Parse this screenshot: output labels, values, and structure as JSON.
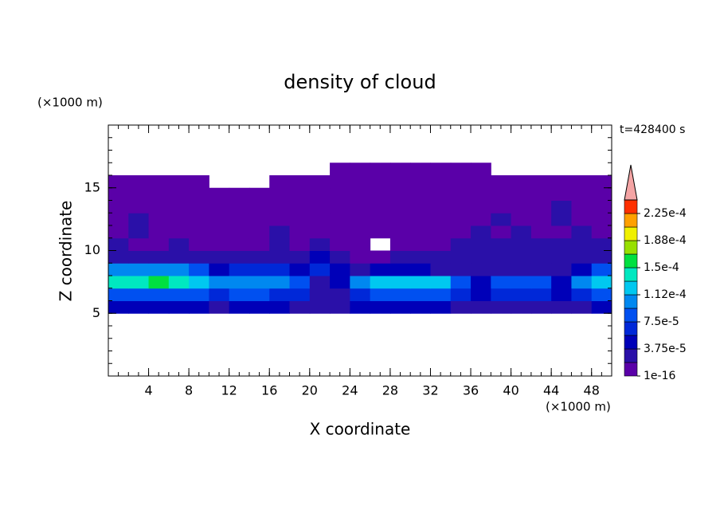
{
  "chart_data": {
    "type": "contour",
    "title": "density of cloud",
    "xlabel": "X coordinate",
    "ylabel": "Z coordinate",
    "xunit": "(×1000 m)",
    "yunit": "(×1000 m)",
    "annotation": "t=428400 s",
    "xlim": [
      0,
      50
    ],
    "ylim": [
      0,
      20
    ],
    "xticks": [
      4,
      8,
      12,
      16,
      20,
      24,
      28,
      32,
      36,
      40,
      44,
      48
    ],
    "yticks": [
      5,
      10,
      15
    ],
    "xminor": 1,
    "yminor": 1,
    "x": [
      1,
      3,
      5,
      7,
      9,
      11,
      13,
      15,
      17,
      19,
      21,
      23,
      25,
      27,
      29,
      31,
      33,
      35,
      37,
      39,
      41,
      43,
      45,
      47,
      49
    ],
    "y": [
      4.5,
      5.5,
      6.5,
      7.5,
      8.5,
      9.5,
      10.5,
      11.5,
      12.5,
      13.5,
      14.5,
      15.5,
      16.5,
      17.5
    ],
    "z": [
      [
        null,
        null,
        null,
        null,
        null,
        null,
        null,
        null,
        null,
        null,
        null,
        null,
        null,
        null,
        null,
        null,
        null,
        null,
        null,
        null,
        null,
        null,
        null,
        null,
        null
      ],
      [
        4e-05,
        4e-05,
        4e-05,
        4e-05,
        4e-05,
        3e-05,
        4e-05,
        4e-05,
        4e-05,
        3e-05,
        2e-05,
        2e-05,
        4e-05,
        4e-05,
        4e-05,
        4e-05,
        4e-05,
        3e-05,
        2e-05,
        3e-05,
        3e-05,
        3e-05,
        2e-05,
        3e-05,
        4e-05
      ],
      [
        8e-05,
        8e-05,
        8.5e-05,
        8e-05,
        8e-05,
        7e-05,
        8e-05,
        8e-05,
        7e-05,
        6e-05,
        3e-05,
        3e-05,
        7e-05,
        8e-05,
        8.5e-05,
        8.5e-05,
        8e-05,
        6e-05,
        4e-05,
        6e-05,
        6e-05,
        6e-05,
        4e-05,
        6e-05,
        8e-05
      ],
      [
        0.00014,
        0.000145,
        0.00015,
        0.00014,
        0.00013,
        0.0001,
        0.000105,
        0.00011,
        0.0001,
        8e-05,
        3e-05,
        4e-05,
        0.0001,
        0.00012,
        0.00013,
        0.00013,
        0.00012,
        9e-05,
        5e-05,
        8e-05,
        9e-05,
        8e-05,
        4e-05,
        0.0001,
        0.00013
      ],
      [
        0.0001,
        0.00011,
        0.00011,
        0.0001,
        8e-05,
        5e-05,
        6e-05,
        7e-05,
        6e-05,
        5e-05,
        6e-05,
        4e-05,
        3e-05,
        4e-05,
        4e-05,
        4e-05,
        3e-05,
        3e-05,
        3e-05,
        2e-05,
        2e-05,
        2e-05,
        2e-05,
        4e-05,
        8e-05
      ],
      [
        3e-05,
        3e-05,
        3e-05,
        2.5e-05,
        2.5e-05,
        2e-05,
        2e-05,
        3e-05,
        2e-05,
        2e-05,
        4e-05,
        2e-05,
        1e-05,
        1.5e-05,
        2e-05,
        2e-05,
        2e-05,
        2e-05,
        2.5e-05,
        2e-05,
        2e-05,
        3e-05,
        2e-05,
        2e-05,
        2.5e-05
      ],
      [
        2e-05,
        1.5e-05,
        1.5e-05,
        2e-05,
        1.5e-05,
        1e-05,
        1e-05,
        1.5e-05,
        2e-05,
        1e-05,
        2e-05,
        1e-05,
        5e-06,
        null,
        1e-05,
        1e-05,
        1.5e-05,
        2e-05,
        2e-05,
        2e-05,
        2e-05,
        2.5e-05,
        2e-05,
        2e-05,
        2e-05
      ],
      [
        1e-05,
        2e-05,
        1e-05,
        1e-05,
        8e-06,
        8e-06,
        8e-06,
        1e-05,
        2e-05,
        1e-05,
        1e-05,
        5e-06,
        5e-06,
        1e-05,
        5e-06,
        8e-06,
        8e-06,
        1e-05,
        2e-05,
        1e-05,
        2e-05,
        1e-05,
        1e-05,
        2e-05,
        1e-05
      ],
      [
        8e-06,
        2e-05,
        5e-06,
        8e-06,
        5e-06,
        5e-06,
        5e-06,
        8e-06,
        5e-06,
        5e-06,
        8e-06,
        5e-06,
        5e-06,
        5e-06,
        5e-06,
        5e-06,
        5e-06,
        8e-06,
        1e-05,
        2e-05,
        8e-06,
        1e-05,
        2e-05,
        8e-06,
        8e-06
      ],
      [
        5e-06,
        5e-06,
        5e-06,
        5e-06,
        5e-06,
        5e-06,
        5e-06,
        5e-06,
        5e-06,
        5e-06,
        5e-06,
        5e-06,
        5e-06,
        5e-06,
        5e-06,
        5e-06,
        5e-06,
        5e-06,
        5e-06,
        5e-06,
        5e-06,
        5e-06,
        2e-05,
        5e-06,
        5e-06
      ],
      [
        3e-06,
        3e-06,
        3e-06,
        3e-06,
        3e-06,
        3e-06,
        3e-06,
        3e-06,
        3e-06,
        3e-06,
        3e-06,
        3e-06,
        3e-06,
        3e-06,
        3e-06,
        3e-06,
        3e-06,
        3e-06,
        3e-06,
        3e-06,
        3e-06,
        3e-06,
        3e-06,
        3e-06,
        3e-06
      ],
      [
        3e-06,
        3e-06,
        3e-06,
        3e-06,
        3e-06,
        null,
        null,
        null,
        3e-06,
        3e-06,
        3e-06,
        3e-06,
        3e-06,
        3e-06,
        3e-06,
        3e-06,
        3e-06,
        3e-06,
        3e-06,
        3e-06,
        3e-06,
        3e-06,
        3e-06,
        3e-06,
        3e-06
      ],
      [
        null,
        null,
        null,
        null,
        null,
        null,
        null,
        null,
        null,
        null,
        null,
        2e-06,
        2e-06,
        2e-06,
        2e-06,
        2e-06,
        2e-06,
        2e-06,
        2e-06,
        null,
        null,
        null,
        null,
        null,
        null
      ],
      [
        null,
        null,
        null,
        null,
        null,
        null,
        null,
        null,
        null,
        null,
        null,
        null,
        null,
        null,
        null,
        null,
        null,
        null,
        null,
        null,
        null,
        null,
        null,
        null,
        null
      ]
    ],
    "levels": [
      1e-16,
      1.875e-05,
      3.75e-05,
      5.625e-05,
      7.5e-05,
      9.375e-05,
      0.0001125,
      0.00013125,
      0.00015,
      0.00016875,
      0.0001875,
      0.00020625,
      0.000225,
      0.00024375
    ],
    "colors": [
      "#5a00a8",
      "#2a10a8",
      "#0000b8",
      "#0028d8",
      "#0050f0",
      "#0088f0",
      "#00c8f0",
      "#00e8c0",
      "#00e040",
      "#98e000",
      "#f0f000",
      "#ffa000",
      "#ff3000"
    ],
    "extend_color": "#f4a4a4",
    "colorbar_ticks": [
      1e-16,
      {
        "value": 3.75e-05,
        "label": "3.75e-5"
      },
      {
        "value": 7.5e-05,
        "label": "7.5e-5"
      },
      {
        "value": 0.0001125,
        "label": "1.12e-4"
      },
      {
        "value": 0.00015,
        "label": "1.5e-4"
      },
      {
        "value": 0.0001875,
        "label": "1.88e-4"
      },
      {
        "value": 0.000225,
        "label": "2.25e-4"
      }
    ]
  }
}
